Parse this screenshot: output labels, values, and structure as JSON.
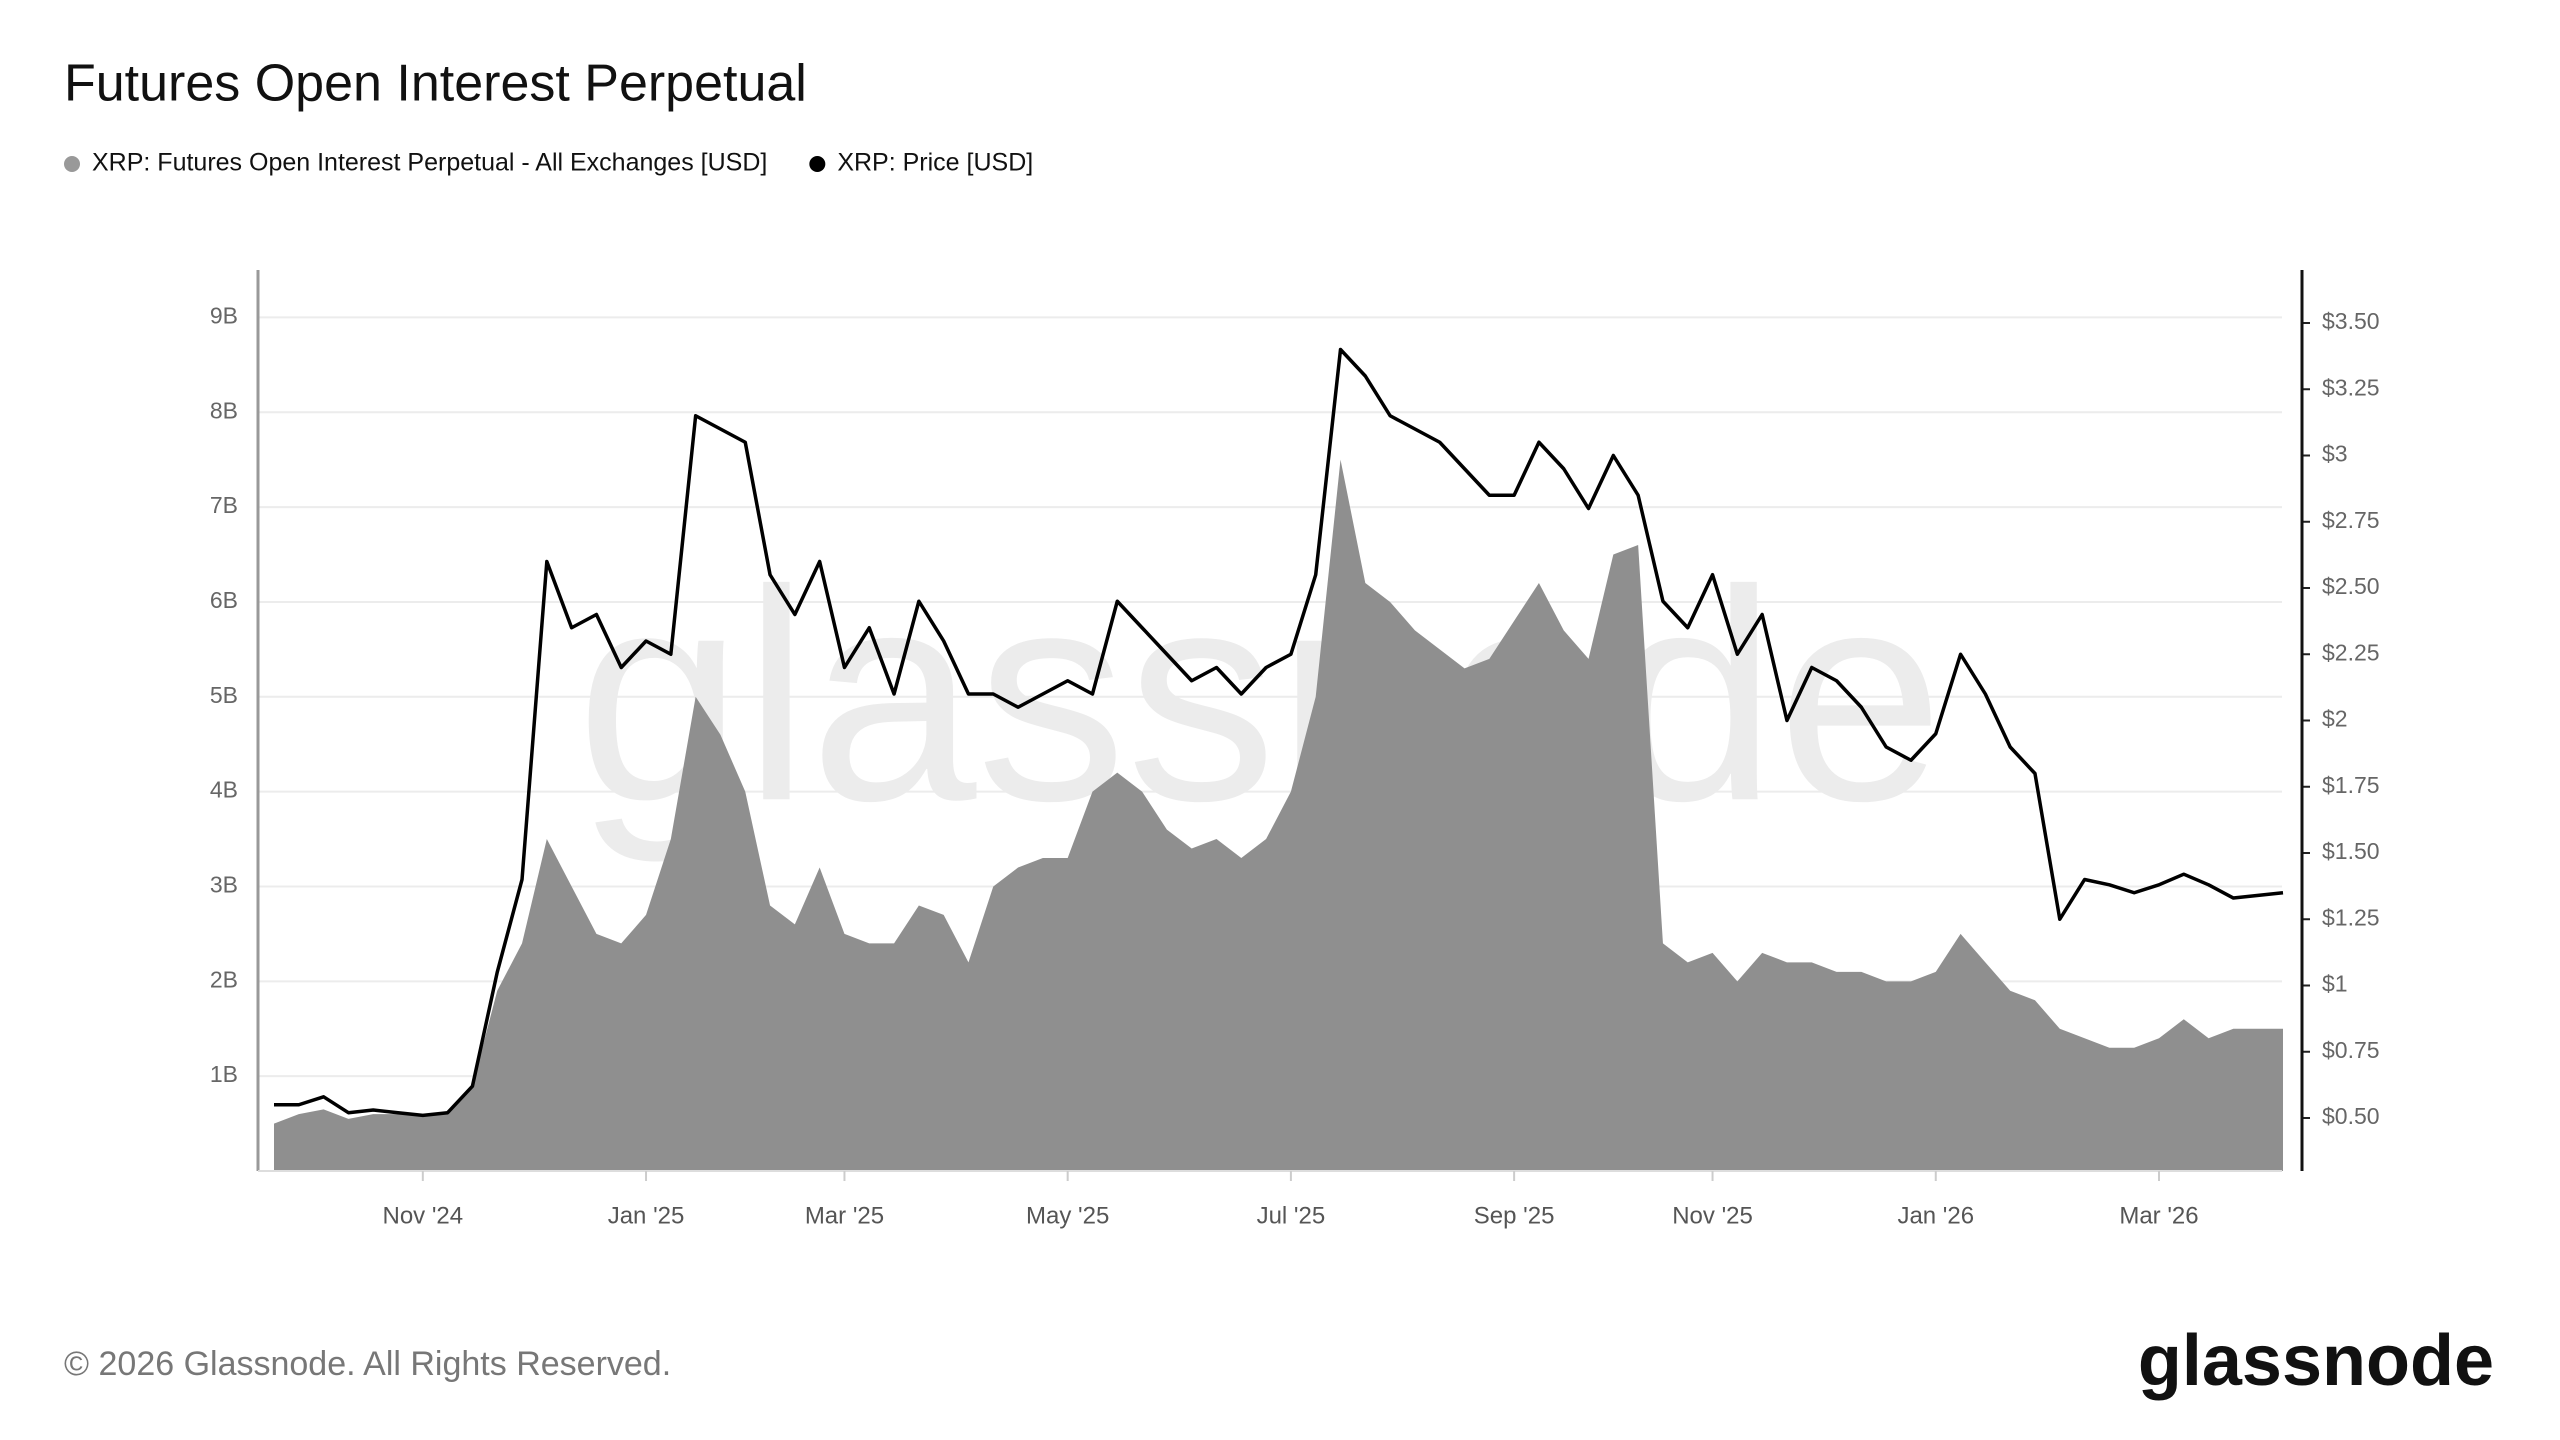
{
  "chart_data": {
    "type": "area-line",
    "title": "Futures Open Interest Perpetual",
    "watermark": "glassnode",
    "categories": [
      null,
      null,
      null,
      null,
      null,
      null,
      "Nov '24",
      null,
      null,
      null,
      null,
      null,
      null,
      null,
      null,
      "Jan '25",
      null,
      null,
      null,
      null,
      null,
      null,
      null,
      "Mar '25",
      null,
      null,
      null,
      null,
      null,
      null,
      null,
      null,
      "May '25",
      null,
      null,
      null,
      null,
      null,
      null,
      null,
      null,
      "Jul '25",
      null,
      null,
      null,
      null,
      null,
      null,
      null,
      null,
      "Sep '25",
      null,
      null,
      null,
      null,
      null,
      null,
      null,
      "Nov '25",
      null,
      null,
      null,
      null,
      null,
      null,
      null,
      null,
      "Jan '26",
      null,
      null,
      null,
      null,
      null,
      null,
      null,
      null,
      "Mar '26",
      null,
      null,
      null,
      null,
      null
    ],
    "series": [
      {
        "name": "XRP: Futures Open Interest Perpetual - All Exchanges [USD]",
        "color": "#8f8f8f",
        "kind": "area",
        "axis": "y",
        "values": [
          0.5,
          0.6,
          0.65,
          0.55,
          0.6,
          0.6,
          0.6,
          0.6,
          0.9,
          1.9,
          2.4,
          3.5,
          3.0,
          2.5,
          2.4,
          2.7,
          3.5,
          5.0,
          4.6,
          4.0,
          2.8,
          2.6,
          3.2,
          2.5,
          2.4,
          2.4,
          2.8,
          2.7,
          2.2,
          3.0,
          3.2,
          3.3,
          3.3,
          4.0,
          4.2,
          4.0,
          3.6,
          3.4,
          3.5,
          3.3,
          3.5,
          4.0,
          5.0,
          7.5,
          6.2,
          6.0,
          5.7,
          5.5,
          5.3,
          5.4,
          5.8,
          6.2,
          5.7,
          5.4,
          6.5,
          6.6,
          2.4,
          2.2,
          2.3,
          2.0,
          2.3,
          2.2,
          2.2,
          2.1,
          2.1,
          2.0,
          2.0,
          2.1,
          2.5,
          2.2,
          1.9,
          1.8,
          1.5,
          1.4,
          1.3,
          1.3,
          1.4,
          1.6,
          1.4,
          1.5,
          1.5,
          1.5
        ]
      },
      {
        "name": "XRP: Price [USD]",
        "color": "#000000",
        "kind": "line",
        "axis": "y2",
        "values": [
          0.55,
          0.55,
          0.58,
          0.52,
          0.53,
          0.52,
          0.51,
          0.52,
          0.62,
          1.05,
          1.4,
          2.6,
          2.35,
          2.4,
          2.2,
          2.3,
          2.25,
          3.15,
          3.1,
          3.05,
          2.55,
          2.4,
          2.6,
          2.2,
          2.35,
          2.1,
          2.45,
          2.3,
          2.1,
          2.1,
          2.05,
          2.1,
          2.15,
          2.1,
          2.45,
          2.35,
          2.25,
          2.15,
          2.2,
          2.1,
          2.2,
          2.25,
          2.55,
          3.4,
          3.3,
          3.15,
          3.1,
          3.05,
          2.95,
          2.85,
          2.85,
          3.05,
          2.95,
          2.8,
          3.0,
          2.85,
          2.45,
          2.35,
          2.55,
          2.25,
          2.4,
          2.0,
          2.2,
          2.15,
          2.05,
          1.9,
          1.85,
          1.95,
          2.25,
          2.1,
          1.9,
          1.8,
          1.25,
          1.4,
          1.38,
          1.35,
          1.38,
          1.42,
          1.38,
          1.33,
          1.34,
          1.35
        ]
      }
    ],
    "ylim": [
      0,
      9.5
    ],
    "yticks": [
      {
        "value": 1,
        "label": "1B"
      },
      {
        "value": 2,
        "label": "2B"
      },
      {
        "value": 3,
        "label": "3B"
      },
      {
        "value": 4,
        "label": "4B"
      },
      {
        "value": 5,
        "label": "5B"
      },
      {
        "value": 6,
        "label": "6B"
      },
      {
        "value": 7,
        "label": "7B"
      },
      {
        "value": 8,
        "label": "8B"
      },
      {
        "value": 9,
        "label": "9B"
      }
    ],
    "y2lim": [
      0.3,
      3.7
    ],
    "y2ticks": [
      {
        "value": 0.5,
        "label": "$0.50"
      },
      {
        "value": 0.75,
        "label": "$0.75"
      },
      {
        "value": 1,
        "label": "$1"
      },
      {
        "value": 1.25,
        "label": "$1.25"
      },
      {
        "value": 1.5,
        "label": "$1.50"
      },
      {
        "value": 1.75,
        "label": "$1.75"
      },
      {
        "value": 2,
        "label": "$2"
      },
      {
        "value": 2.25,
        "label": "$2.25"
      },
      {
        "value": 2.5,
        "label": "$2.50"
      },
      {
        "value": 2.75,
        "label": "$2.75"
      },
      {
        "value": 3,
        "label": "$3"
      },
      {
        "value": 3.25,
        "label": "$3.25"
      },
      {
        "value": 3.5,
        "label": "$3.50"
      }
    ],
    "grid": true
  },
  "footer": {
    "copyright": "© 2026 Glassnode. All Rights Reserved.",
    "logo": "glassnode"
  }
}
